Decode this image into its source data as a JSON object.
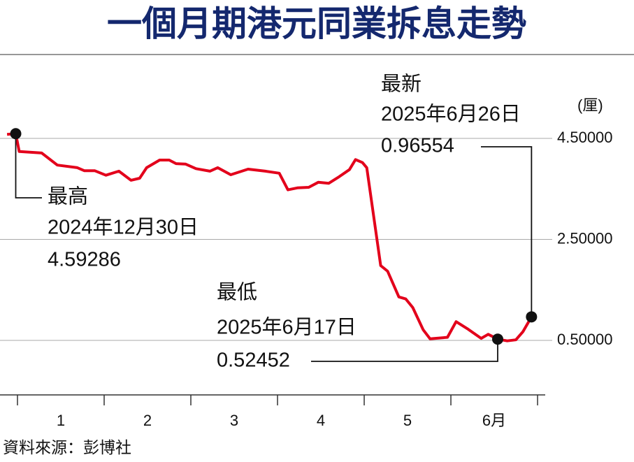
{
  "chart_data": {
    "type": "line",
    "title": "一個月期港元同業拆息走勢",
    "y_unit": "(厘)",
    "source": "資料來源：彭博社",
    "categories": [
      "1",
      "2",
      "3",
      "4",
      "5",
      "6月"
    ],
    "xlim": [
      -0.137,
      6.169
    ],
    "xticks": [
      0,
      1,
      2,
      3,
      4,
      5,
      6
    ],
    "ylim": [
      -0.58,
      6.16
    ],
    "yticks": [
      {
        "value": 0.5,
        "label": "0.50000"
      },
      {
        "value": 2.5,
        "label": "2.50000"
      },
      {
        "value": 4.5,
        "label": "4.50000"
      }
    ],
    "grid": true,
    "series": [
      {
        "name": "一個月期港元同業拆息",
        "color": "#e3001b",
        "x": [
          -0.12,
          -0.02,
          0.02,
          0.28,
          0.46,
          0.69,
          0.77,
          0.89,
          1.02,
          1.17,
          1.31,
          1.41,
          1.49,
          1.64,
          1.75,
          1.83,
          1.94,
          2.06,
          2.22,
          2.31,
          2.46,
          2.66,
          2.86,
          3.02,
          3.12,
          3.23,
          3.36,
          3.47,
          3.59,
          3.71,
          3.83,
          3.9,
          3.98,
          4.03,
          4.19,
          4.27,
          4.4,
          4.48,
          4.56,
          4.68,
          4.76,
          4.96,
          5.06,
          5.2,
          5.35,
          5.43,
          5.54,
          5.65,
          5.75,
          5.83,
          5.93
        ],
        "values": [
          4.58,
          4.59286,
          4.24,
          4.21,
          3.97,
          3.92,
          3.86,
          3.86,
          3.77,
          3.85,
          3.67,
          3.71,
          3.92,
          4.07,
          4.07,
          4.0,
          3.99,
          3.9,
          3.85,
          3.92,
          3.78,
          3.89,
          3.85,
          3.81,
          3.48,
          3.52,
          3.53,
          3.63,
          3.61,
          3.74,
          3.88,
          4.08,
          4.02,
          3.92,
          1.98,
          1.87,
          1.36,
          1.32,
          1.15,
          0.71,
          0.53,
          0.56,
          0.87,
          0.72,
          0.54,
          0.62,
          0.52452,
          0.49,
          0.51,
          0.67,
          0.96554
        ]
      }
    ],
    "annotations": [
      {
        "label": "最高",
        "date": "2024年12月30日"
      },
      {
        "label": "最低",
        "date": "2025年6月17日"
      },
      {
        "label": "最新",
        "date": "2025年6月26日"
      }
    ]
  }
}
